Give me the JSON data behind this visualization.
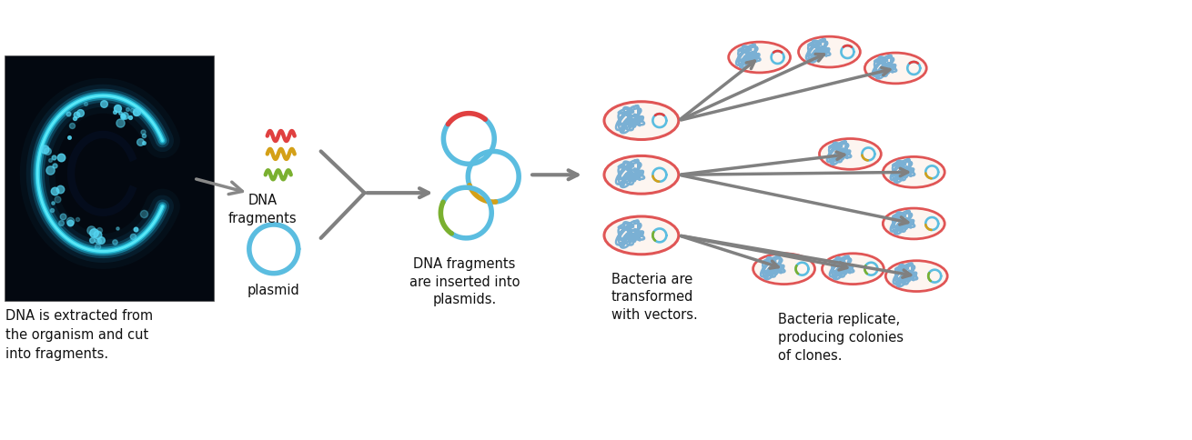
{
  "bg_color": "#ffffff",
  "text_color": "#111111",
  "arrow_color": "#808080",
  "bacteria_outline_color": "#e05555",
  "bacteria_fill_color": "#fdf5f0",
  "plasmid_blue": "#5bbde0",
  "plasmid_red": "#e04040",
  "plasmid_yellow": "#d4a017",
  "plasmid_green": "#7ab030",
  "chromosome_color": "#7ab0d4",
  "labels": {
    "step1": "DNA is extracted from\nthe organism and cut\ninto fragments.",
    "step2_top": "DNA\nfragments",
    "step2_bot": "plasmid",
    "step3": "DNA fragments\nare inserted into\nplasmids.",
    "step4": "Bacteria are\ntransformed\nwith vectors.",
    "step5": "Bacteria replicate,\nproducing colonies\nof clones."
  },
  "font_size": 10.5
}
